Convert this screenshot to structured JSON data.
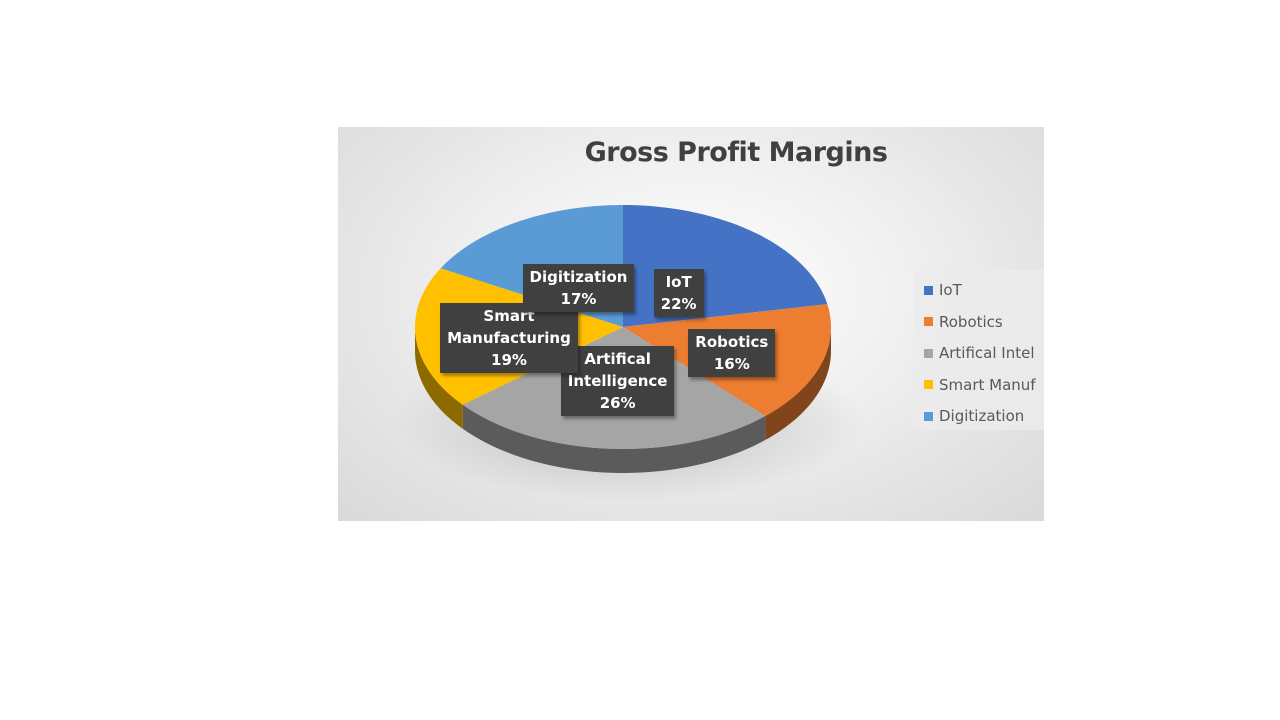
{
  "chart_data": {
    "type": "pie",
    "title": "Gross Profit Margins",
    "categories": [
      "IoT",
      "Robotics",
      "Artifical Intelligence",
      "Smart Manufacturing",
      "Digitization"
    ],
    "values": [
      22,
      16,
      26,
      19,
      17
    ],
    "value_labels": [
      "22%",
      "16%",
      "26%",
      "19%",
      "17%"
    ],
    "colors": [
      "#4472c4",
      "#ed7d31",
      "#a5a5a5",
      "#ffc000",
      "#5b9bd5"
    ],
    "label_lines": [
      [
        "IoT",
        "22%"
      ],
      [
        "Robotics",
        "16%"
      ],
      [
        "Artifical",
        "Intelligence",
        "26%"
      ],
      [
        "Smart",
        "Manufacturing",
        "19%"
      ],
      [
        "Digitization",
        "17%"
      ]
    ],
    "legend": {
      "position": "right",
      "entries": [
        "IoT",
        "Robotics",
        "Artifical Intel",
        "Smart Manuf",
        "Digitization"
      ]
    },
    "style": "3d-pie"
  }
}
